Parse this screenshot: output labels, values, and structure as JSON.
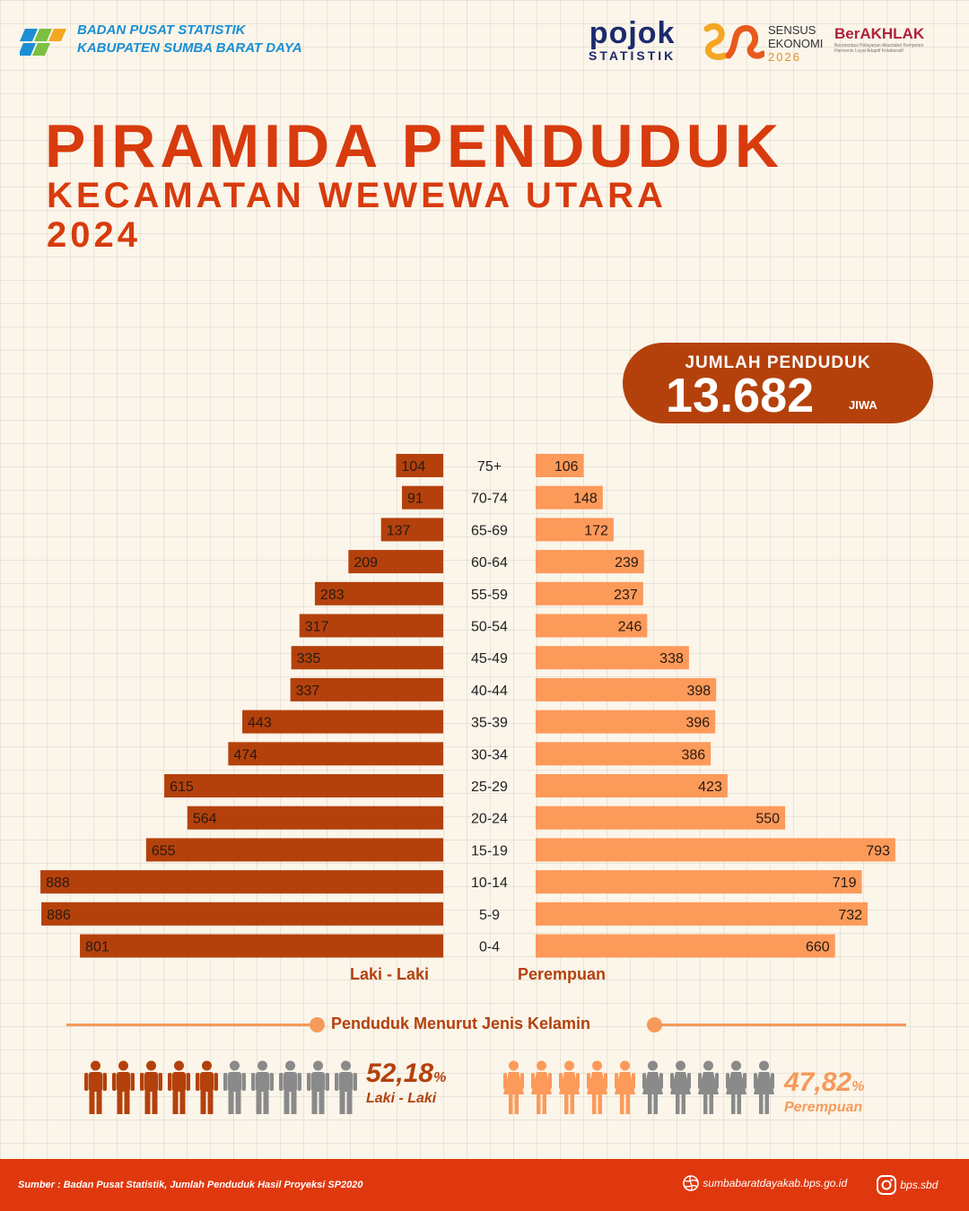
{
  "header": {
    "org_line1": "BADAN PUSAT STATISTIK",
    "org_line2": "KABUPATEN SUMBA BARAT DAYA",
    "pojok_big": "pojok",
    "pojok_small": "STATISTIK",
    "se_line1": "SENSUS",
    "se_line2": "EKONOMI",
    "se_line3": "2026",
    "akhlak_name": "BerAKHLAK",
    "akhlak_sub": "Berorientasi Pelayanan Akuntabel Kompeten Harmonis Loyal Adaptif Kolaboratif"
  },
  "title": {
    "line1": "PIRAMIDA PENDUDUK",
    "line2": "KECAMATAN WEWEWA UTARA",
    "line3": "2024"
  },
  "total": {
    "label": "JUMLAH PENDUDUK",
    "value": "13.682",
    "unit": "JIWA"
  },
  "chart_data": {
    "type": "bar",
    "categories": [
      "75+",
      "70-74",
      "65-69",
      "60-64",
      "55-59",
      "50-54",
      "45-49",
      "40-44",
      "35-39",
      "30-34",
      "25-29",
      "20-24",
      "15-19",
      "10-14",
      "5-9",
      "0-4"
    ],
    "series": [
      {
        "name": "Laki - Laki",
        "color": "#b4410c",
        "values": [
          104,
          91,
          137,
          209,
          283,
          317,
          335,
          337,
          443,
          474,
          615,
          564,
          655,
          888,
          886,
          801
        ]
      },
      {
        "name": "Perempuan",
        "color": "#fc9a5a",
        "values": [
          106,
          148,
          172,
          239,
          237,
          246,
          338,
          398,
          396,
          386,
          423,
          550,
          793,
          719,
          732,
          660
        ]
      }
    ],
    "xlim": [
      0,
      900
    ],
    "legend": "bottom"
  },
  "section": {
    "title": "Penduduk Menurut Jenis Kelamin",
    "male_pct": "52,18",
    "male_pct_symbol": "%",
    "male_label": "Laki - Laki",
    "female_pct": "47,82",
    "female_pct_symbol": "%",
    "female_label": "Perempuan",
    "male_icon_fill": 0.52,
    "female_icon_fill": 0.48,
    "colors": {
      "male": "#b4410c",
      "female": "#fc9a5a",
      "neutral": "#8a8a8a"
    }
  },
  "footer": {
    "source": "Sumber : Badan Pusat Statistik, Jumlah Penduduk Hasil Proyeksi SP2020",
    "website": "sumbabaratdayakab.bps.go.id",
    "instagram": "bps.sbd"
  }
}
